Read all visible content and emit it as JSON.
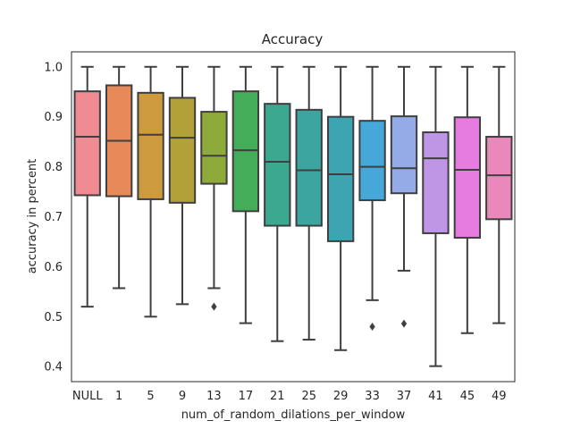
{
  "chart_data": {
    "type": "box",
    "title": "Accuracy",
    "xlabel": "num_of_random_dilations_per_window",
    "ylabel": "accuracy in percent",
    "ylim": [
      0.37,
      1.03
    ],
    "yticks": [
      "0.4",
      "0.5",
      "0.6",
      "0.7",
      "0.8",
      "0.9",
      "1.0"
    ],
    "grid": false,
    "categories": [
      "NULL",
      "1",
      "5",
      "9",
      "13",
      "17",
      "21",
      "25",
      "29",
      "33",
      "37",
      "41",
      "45",
      "49"
    ],
    "boxes": [
      {
        "label": "NULL",
        "whislo": 0.52,
        "q1": 0.743,
        "med": 0.86,
        "q3": 0.951,
        "whishi": 1.0,
        "fliers": [],
        "color": "#f08a93"
      },
      {
        "label": "1",
        "whislo": 0.557,
        "q1": 0.741,
        "med": 0.852,
        "q3": 0.963,
        "whishi": 1.0,
        "fliers": [],
        "color": "#e8895a"
      },
      {
        "label": "5",
        "whislo": 0.5,
        "q1": 0.735,
        "med": 0.864,
        "q3": 0.948,
        "whishi": 1.0,
        "fliers": [],
        "color": "#cd9a3e"
      },
      {
        "label": "9",
        "whislo": 0.525,
        "q1": 0.728,
        "med": 0.858,
        "q3": 0.938,
        "whishi": 1.0,
        "fliers": [],
        "color": "#b2a039"
      },
      {
        "label": "13",
        "whislo": 0.557,
        "q1": 0.766,
        "med": 0.822,
        "q3": 0.91,
        "whishi": 1.0,
        "fliers": [
          0.52
        ],
        "color": "#8daa3a"
      },
      {
        "label": "17",
        "whislo": 0.487,
        "q1": 0.711,
        "med": 0.833,
        "q3": 0.951,
        "whishi": 1.0,
        "fliers": [],
        "color": "#43ad5a"
      },
      {
        "label": "21",
        "whislo": 0.451,
        "q1": 0.682,
        "med": 0.81,
        "q3": 0.926,
        "whishi": 1.0,
        "fliers": [],
        "color": "#3ba98f"
      },
      {
        "label": "25",
        "whislo": 0.454,
        "q1": 0.682,
        "med": 0.793,
        "q3": 0.914,
        "whishi": 1.0,
        "fliers": [],
        "color": "#3ca59f"
      },
      {
        "label": "29",
        "whislo": 0.433,
        "q1": 0.651,
        "med": 0.785,
        "q3": 0.9,
        "whishi": 1.0,
        "fliers": [],
        "color": "#3da5b2"
      },
      {
        "label": "33",
        "whislo": 0.533,
        "q1": 0.733,
        "med": 0.8,
        "q3": 0.892,
        "whishi": 1.0,
        "fliers": [
          0.48
        ],
        "color": "#46a8d8"
      },
      {
        "label": "37",
        "whislo": 0.592,
        "q1": 0.747,
        "med": 0.797,
        "q3": 0.901,
        "whishi": 1.0,
        "fliers": [
          0.486
        ],
        "color": "#94abe8"
      },
      {
        "label": "41",
        "whislo": 0.401,
        "q1": 0.667,
        "med": 0.817,
        "q3": 0.869,
        "whishi": 1.0,
        "fliers": [],
        "color": "#bf95e6"
      },
      {
        "label": "45",
        "whislo": 0.467,
        "q1": 0.658,
        "med": 0.794,
        "q3": 0.899,
        "whishi": 1.0,
        "fliers": [],
        "color": "#e67ce0"
      },
      {
        "label": "49",
        "whislo": 0.487,
        "q1": 0.695,
        "med": 0.783,
        "q3": 0.86,
        "whishi": 1.0,
        "fliers": [],
        "color": "#ea88bb"
      }
    ],
    "line_color": "#3f3f3f"
  }
}
